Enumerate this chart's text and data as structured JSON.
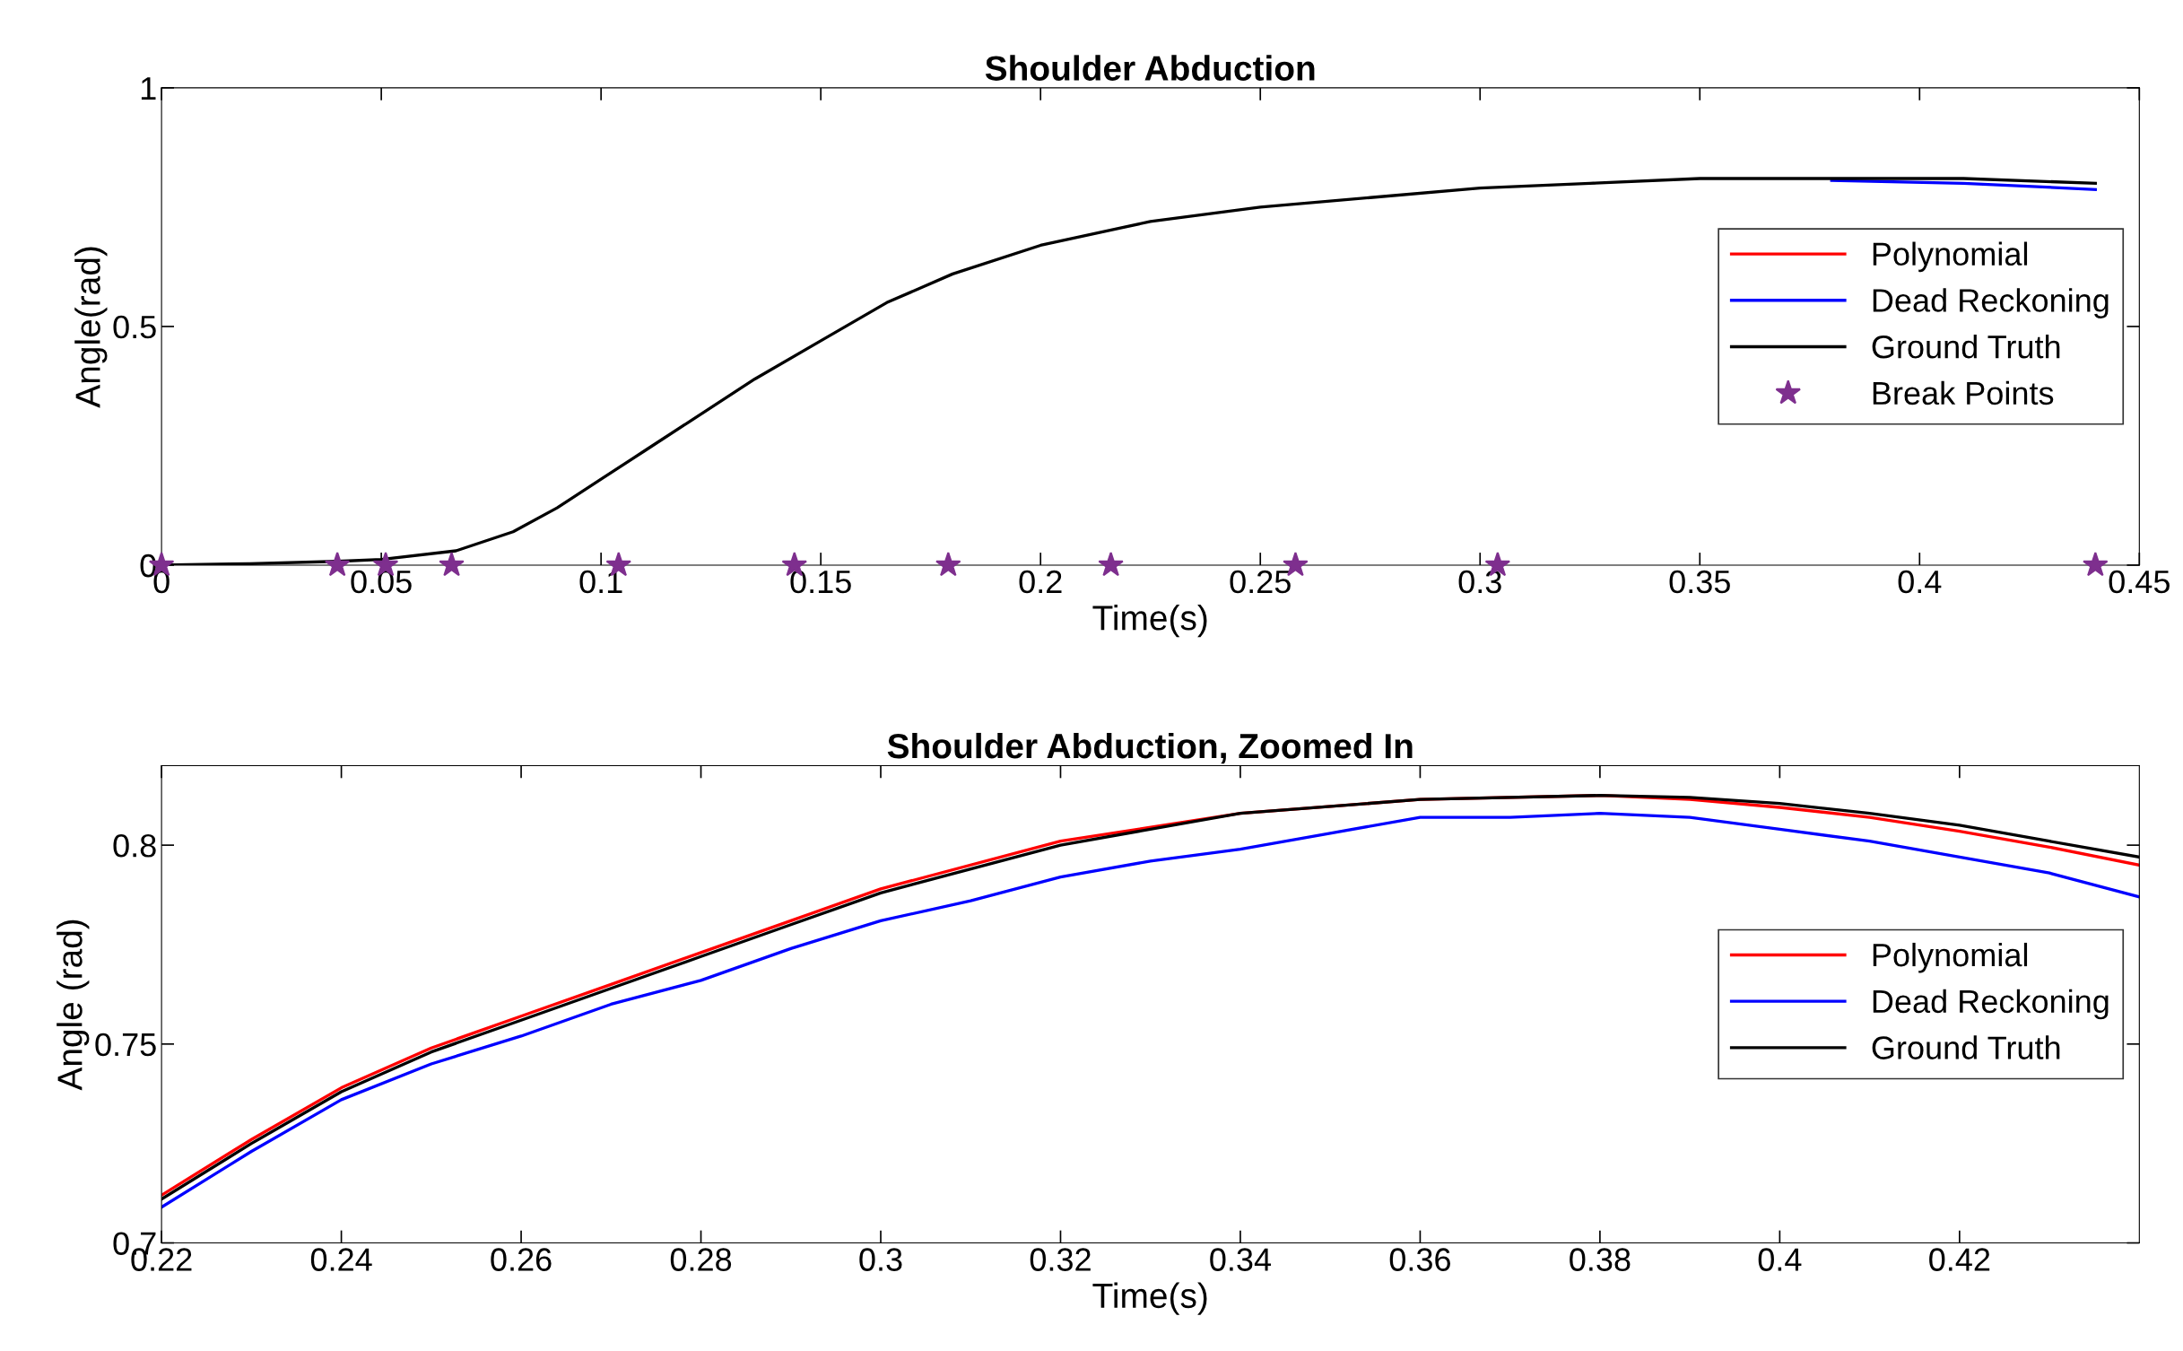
{
  "chart_data": [
    {
      "type": "line",
      "title": "Shoulder Abduction",
      "xlabel": "Time(s)",
      "ylabel": "Angle(rad)",
      "xlim": [
        0,
        0.45
      ],
      "ylim": [
        0,
        1
      ],
      "xticks": [
        0,
        0.05,
        0.1,
        0.15,
        0.2,
        0.25,
        0.3,
        0.35,
        0.4,
        0.45
      ],
      "yticks": [
        0,
        0.5,
        1
      ],
      "grid": false,
      "legend": "right",
      "series": [
        {
          "name": "Polynomial",
          "color": "#ff0000"
        },
        {
          "name": "Dead Reckoning",
          "color": "#0000ff",
          "x": [
            0.38,
            0.41,
            0.44
          ],
          "values": [
            0.806,
            0.8,
            0.787
          ]
        },
        {
          "name": "Ground Truth",
          "color": "#000000",
          "x": [
            0,
            0.02,
            0.04,
            0.05,
            0.067,
            0.08,
            0.09,
            0.1,
            0.11,
            0.12,
            0.135,
            0.15,
            0.165,
            0.18,
            0.2,
            0.225,
            0.25,
            0.275,
            0.3,
            0.325,
            0.35,
            0.38,
            0.41,
            0.44
          ],
          "values": [
            0,
            0.003,
            0.008,
            0.012,
            0.03,
            0.07,
            0.12,
            0.18,
            0.24,
            0.3,
            0.39,
            0.47,
            0.55,
            0.61,
            0.67,
            0.72,
            0.75,
            0.77,
            0.79,
            0.8,
            0.81,
            0.81,
            0.81,
            0.8
          ]
        },
        {
          "name": "Break Points",
          "type": "scatter",
          "marker": "star",
          "color": "#7e2f8e",
          "x": [
            0,
            0.04,
            0.051,
            0.066,
            0.104,
            0.144,
            0.179,
            0.216,
            0.258,
            0.304,
            0.44
          ],
          "values": [
            0,
            0,
            0,
            0,
            0,
            0,
            0,
            0,
            0,
            0,
            0
          ]
        }
      ]
    },
    {
      "type": "line",
      "title": "Shoulder Abduction, Zoomed In",
      "xlabel": "Time(s)",
      "ylabel": "Angle (rad)",
      "xlim": [
        0.22,
        0.44
      ],
      "ylim": [
        0.7,
        0.82
      ],
      "xticks": [
        0.22,
        0.24,
        0.26,
        0.28,
        0.3,
        0.32,
        0.34,
        0.36,
        0.38,
        0.4,
        0.42
      ],
      "yticks": [
        0.7,
        0.75,
        0.8
      ],
      "grid": false,
      "legend": "right",
      "series": [
        {
          "name": "Polynomial",
          "color": "#ff0000",
          "x": [
            0.22,
            0.23,
            0.24,
            0.25,
            0.26,
            0.27,
            0.28,
            0.29,
            0.3,
            0.32,
            0.34,
            0.36,
            0.38,
            0.39,
            0.4,
            0.41,
            0.42,
            0.43,
            0.44
          ],
          "values": [
            0.712,
            0.726,
            0.739,
            0.749,
            0.757,
            0.765,
            0.773,
            0.781,
            0.789,
            0.801,
            0.808,
            0.8115,
            0.8125,
            0.8115,
            0.8095,
            0.807,
            0.8035,
            0.7995,
            0.795
          ]
        },
        {
          "name": "Dead Reckoning",
          "color": "#0000ff",
          "x": [
            0.22,
            0.23,
            0.24,
            0.25,
            0.26,
            0.27,
            0.28,
            0.29,
            0.3,
            0.31,
            0.32,
            0.33,
            0.34,
            0.35,
            0.36,
            0.37,
            0.38,
            0.39,
            0.4,
            0.41,
            0.42,
            0.43,
            0.44
          ],
          "values": [
            0.709,
            0.723,
            0.736,
            0.745,
            0.752,
            0.76,
            0.766,
            0.774,
            0.781,
            0.786,
            0.792,
            0.796,
            0.799,
            0.803,
            0.807,
            0.807,
            0.808,
            0.807,
            0.804,
            0.801,
            0.797,
            0.793,
            0.787
          ]
        },
        {
          "name": "Ground Truth",
          "color": "#000000",
          "x": [
            0.22,
            0.23,
            0.24,
            0.25,
            0.26,
            0.27,
            0.28,
            0.29,
            0.3,
            0.32,
            0.34,
            0.36,
            0.38,
            0.39,
            0.4,
            0.41,
            0.42,
            0.43,
            0.44
          ],
          "values": [
            0.711,
            0.725,
            0.738,
            0.748,
            0.756,
            0.764,
            0.772,
            0.78,
            0.788,
            0.8,
            0.808,
            0.8115,
            0.8125,
            0.812,
            0.8105,
            0.808,
            0.805,
            0.801,
            0.797
          ]
        }
      ]
    }
  ]
}
